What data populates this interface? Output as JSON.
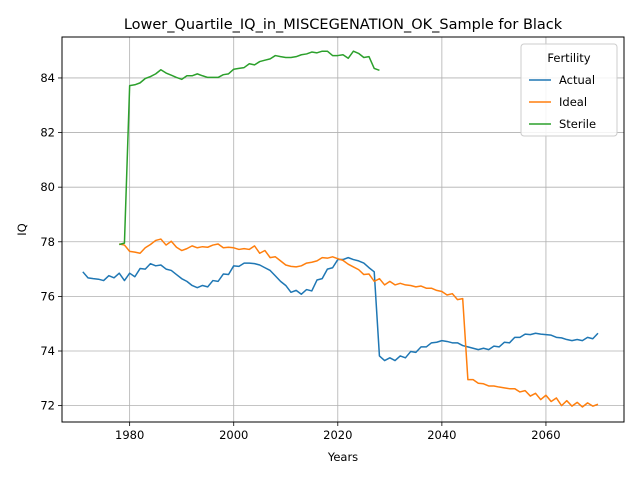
{
  "chart_data": {
    "type": "line",
    "title": "Lower_Quartile_IQ_in_MISCEGENATION_OK_Sample for Black",
    "xlabel": "Years",
    "ylabel": "IQ",
    "xlim": [
      1967,
      2075
    ],
    "ylim": [
      71.4,
      85.5
    ],
    "xticks": [
      1980,
      2000,
      2020,
      2040,
      2060
    ],
    "yticks": [
      72,
      74,
      76,
      78,
      80,
      82,
      84
    ],
    "grid": true,
    "legend": {
      "title": "Fertility",
      "placement": "top-right"
    },
    "series": [
      {
        "name": "Actual",
        "color": "#1f77b4",
        "x": [
          1971,
          1972,
          1973,
          1974,
          1975,
          1976,
          1977,
          1978,
          1979,
          1980,
          1981,
          1982,
          1983,
          1984,
          1985,
          1986,
          1987,
          1988,
          1989,
          1990,
          1991,
          1992,
          1993,
          1994,
          1995,
          1996,
          1997,
          1998,
          1999,
          2000,
          2001,
          2002,
          2003,
          2004,
          2005,
          2006,
          2007,
          2008,
          2009,
          2010,
          2011,
          2012,
          2013,
          2014,
          2015,
          2016,
          2017,
          2018,
          2019,
          2020,
          2021,
          2022,
          2023,
          2024,
          2025,
          2026,
          2027,
          2028,
          2029,
          2030,
          2031,
          2032,
          2033,
          2034,
          2035,
          2036,
          2037,
          2038,
          2039,
          2040,
          2041,
          2042,
          2043,
          2044,
          2045,
          2046,
          2047,
          2048,
          2049,
          2050,
          2051,
          2052,
          2053,
          2054,
          2055,
          2056,
          2057,
          2058,
          2059,
          2060,
          2061,
          2062,
          2063,
          2064,
          2065,
          2066,
          2067,
          2068,
          2069,
          2070
        ],
        "y": [
          76.9,
          76.68,
          76.65,
          76.63,
          76.58,
          76.76,
          76.68,
          76.85,
          76.58,
          76.85,
          76.72,
          77.02,
          77.0,
          77.2,
          77.12,
          77.15,
          77.0,
          76.95,
          76.8,
          76.65,
          76.55,
          76.4,
          76.32,
          76.4,
          76.35,
          76.58,
          76.55,
          76.82,
          76.8,
          77.12,
          77.1,
          77.22,
          77.22,
          77.2,
          77.15,
          77.05,
          76.95,
          76.75,
          76.55,
          76.4,
          76.15,
          76.22,
          76.08,
          76.25,
          76.2,
          76.6,
          76.65,
          77.0,
          77.05,
          77.35,
          77.35,
          77.42,
          77.35,
          77.3,
          77.22,
          77.05,
          76.9,
          73.82,
          73.65,
          73.75,
          73.65,
          73.82,
          73.75,
          73.98,
          73.95,
          74.15,
          74.15,
          74.3,
          74.32,
          74.38,
          74.35,
          74.3,
          74.3,
          74.2,
          74.15,
          74.1,
          74.05,
          74.1,
          74.05,
          74.18,
          74.15,
          74.32,
          74.3,
          74.5,
          74.5,
          74.62,
          74.6,
          74.65,
          74.62,
          74.6,
          74.58,
          74.5,
          74.48,
          74.42,
          74.38,
          74.42,
          74.38,
          74.5,
          74.45,
          74.65
        ]
      },
      {
        "name": "Ideal",
        "color": "#ff7f0e",
        "x": [
          1978,
          1979,
          1980,
          1981,
          1982,
          1983,
          1984,
          1985,
          1986,
          1987,
          1988,
          1989,
          1990,
          1991,
          1992,
          1993,
          1994,
          1995,
          1996,
          1997,
          1998,
          1999,
          2000,
          2001,
          2002,
          2003,
          2004,
          2005,
          2006,
          2007,
          2008,
          2009,
          2010,
          2011,
          2012,
          2013,
          2014,
          2015,
          2016,
          2017,
          2018,
          2019,
          2020,
          2021,
          2022,
          2023,
          2024,
          2025,
          2026,
          2027,
          2028,
          2029,
          2030,
          2031,
          2032,
          2033,
          2034,
          2035,
          2036,
          2037,
          2038,
          2039,
          2040,
          2041,
          2042,
          2043,
          2044,
          2045,
          2046,
          2047,
          2048,
          2049,
          2050,
          2051,
          2052,
          2053,
          2054,
          2055,
          2056,
          2057,
          2058,
          2059,
          2060,
          2061,
          2062,
          2063,
          2064,
          2065,
          2066,
          2067,
          2068,
          2069,
          2070
        ],
        "y": [
          77.92,
          77.88,
          77.65,
          77.62,
          77.58,
          77.78,
          77.9,
          78.05,
          78.1,
          77.88,
          78.02,
          77.8,
          77.68,
          77.75,
          77.85,
          77.78,
          77.82,
          77.8,
          77.88,
          77.92,
          77.78,
          77.8,
          77.78,
          77.72,
          77.75,
          77.72,
          77.85,
          77.58,
          77.68,
          77.42,
          77.45,
          77.3,
          77.15,
          77.1,
          77.08,
          77.12,
          77.22,
          77.25,
          77.3,
          77.42,
          77.4,
          77.45,
          77.38,
          77.32,
          77.18,
          77.08,
          76.98,
          76.8,
          76.82,
          76.55,
          76.65,
          76.42,
          76.55,
          76.42,
          76.48,
          76.42,
          76.4,
          76.35,
          76.38,
          76.3,
          76.3,
          76.22,
          76.18,
          76.05,
          76.1,
          75.88,
          75.92,
          72.95,
          72.95,
          72.82,
          72.8,
          72.72,
          72.72,
          72.68,
          72.65,
          72.62,
          72.62,
          72.5,
          72.55,
          72.35,
          72.45,
          72.22,
          72.38,
          72.15,
          72.28,
          72.0,
          72.18,
          71.98,
          72.12,
          71.95,
          72.1,
          71.98,
          72.05
        ]
      },
      {
        "name": "Sterile",
        "color": "#2ca02c",
        "x": [
          1978,
          1979,
          1980,
          1981,
          1982,
          1983,
          1984,
          1985,
          1986,
          1987,
          1988,
          1989,
          1990,
          1991,
          1992,
          1993,
          1994,
          1995,
          1996,
          1997,
          1998,
          1999,
          2000,
          2001,
          2002,
          2003,
          2004,
          2005,
          2006,
          2007,
          2008,
          2009,
          2010,
          2011,
          2012,
          2013,
          2014,
          2015,
          2016,
          2017,
          2018,
          2019,
          2020,
          2021,
          2022,
          2023,
          2024,
          2025,
          2026,
          2027,
          2028
        ],
        "y": [
          77.9,
          77.95,
          83.72,
          83.75,
          83.82,
          83.98,
          84.05,
          84.15,
          84.3,
          84.18,
          84.1,
          84.02,
          83.95,
          84.08,
          84.08,
          84.15,
          84.08,
          84.02,
          84.02,
          84.02,
          84.12,
          84.15,
          84.32,
          84.35,
          84.38,
          84.52,
          84.48,
          84.6,
          84.65,
          84.7,
          84.82,
          84.78,
          84.75,
          84.75,
          84.78,
          84.85,
          84.88,
          84.95,
          84.92,
          84.98,
          84.98,
          84.82,
          84.82,
          84.85,
          84.72,
          84.98,
          84.9,
          84.75,
          84.78,
          84.35,
          84.28
        ]
      }
    ]
  }
}
